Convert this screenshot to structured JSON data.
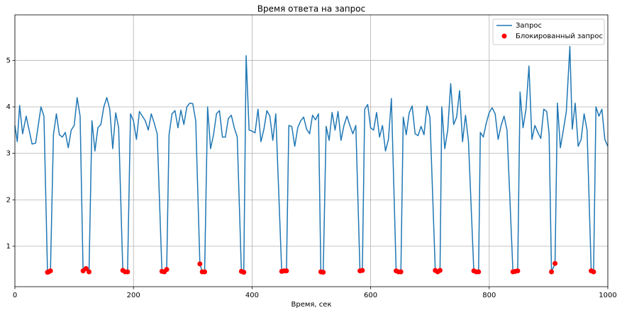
{
  "chart_data": {
    "type": "line",
    "title": "Время ответа на запрос",
    "x_label": "Время, сек",
    "xlim": [
      0,
      1000
    ],
    "xticks": [
      0,
      200,
      400,
      600,
      800,
      1000
    ],
    "ylim": [
      0.13,
      5.98
    ],
    "yticks": [
      1,
      2,
      3,
      4,
      5
    ],
    "grid": true,
    "legend": "upper right",
    "series": [
      {
        "name": "Запрос",
        "type": "line",
        "color": "#1f77b4",
        "x": [
          0,
          4,
          8,
          13,
          19,
          24,
          29,
          35,
          44,
          49,
          55,
          57,
          60,
          65,
          70,
          75,
          80,
          85,
          90,
          95,
          100,
          105,
          110,
          115,
          120,
          125,
          130,
          135,
          140,
          145,
          150,
          155,
          160,
          165,
          170,
          175,
          182,
          186,
          190,
          195,
          200,
          205,
          210,
          215,
          220,
          225,
          230,
          235,
          240,
          248,
          252,
          256,
          260,
          265,
          270,
          275,
          280,
          285,
          290,
          295,
          300,
          305,
          312,
          316,
          320,
          325,
          330,
          335,
          340,
          345,
          350,
          355,
          360,
          365,
          370,
          375,
          382,
          386,
          390,
          395,
          400,
          405,
          410,
          415,
          420,
          425,
          430,
          435,
          440,
          450,
          454,
          458,
          462,
          467,
          472,
          477,
          482,
          487,
          492,
          497,
          502,
          507,
          512,
          516,
          520,
          525,
          530,
          535,
          540,
          545,
          550,
          555,
          560,
          565,
          570,
          575,
          582,
          586,
          590,
          595,
          600,
          605,
          610,
          615,
          620,
          625,
          630,
          635,
          643,
          647,
          651,
          655,
          660,
          665,
          670,
          675,
          680,
          685,
          690,
          695,
          700,
          709,
          713,
          717,
          720,
          725,
          730,
          735,
          740,
          745,
          750,
          755,
          760,
          765,
          774,
          778,
          782,
          785,
          790,
          795,
          800,
          805,
          810,
          815,
          820,
          825,
          830,
          840,
          844,
          848,
          852,
          857,
          862,
          867,
          872,
          877,
          882,
          887,
          892,
          897,
          901,
          905,
          911,
          915,
          920,
          925,
          930,
          936,
          940,
          945,
          950,
          955,
          960,
          965,
          972,
          976,
          980,
          985,
          990,
          995,
          1000
        ],
        "values": [
          3.6,
          3.25,
          4.03,
          3.42,
          3.8,
          3.5,
          3.2,
          3.22,
          4.0,
          3.8,
          0.44,
          0.45,
          0.47,
          3.4,
          3.85,
          3.4,
          3.35,
          3.45,
          3.12,
          3.5,
          3.6,
          4.2,
          3.8,
          0.47,
          0.52,
          0.45,
          3.7,
          3.05,
          3.55,
          3.62,
          4.0,
          4.2,
          3.95,
          3.1,
          3.87,
          3.55,
          0.48,
          0.45,
          0.45,
          3.85,
          3.7,
          3.3,
          3.9,
          3.8,
          3.7,
          3.5,
          3.85,
          3.65,
          3.42,
          0.46,
          0.45,
          0.5,
          3.4,
          3.85,
          3.92,
          3.55,
          3.93,
          3.62,
          4.0,
          4.08,
          4.07,
          3.7,
          0.62,
          0.45,
          0.45,
          4.0,
          3.1,
          3.4,
          3.85,
          3.92,
          3.35,
          3.35,
          3.75,
          3.82,
          3.55,
          3.35,
          0.46,
          0.44,
          5.1,
          3.5,
          3.48,
          3.44,
          3.95,
          3.25,
          3.52,
          3.92,
          3.8,
          3.28,
          3.85,
          0.46,
          0.47,
          0.47,
          3.6,
          3.58,
          3.15,
          3.55,
          3.7,
          3.78,
          3.52,
          3.42,
          3.82,
          3.72,
          3.85,
          0.45,
          0.44,
          3.58,
          3.28,
          3.88,
          3.5,
          3.9,
          3.28,
          3.6,
          3.8,
          3.6,
          3.42,
          3.6,
          0.47,
          0.48,
          3.95,
          4.05,
          3.55,
          3.5,
          3.88,
          3.35,
          3.6,
          3.05,
          3.3,
          4.18,
          0.47,
          0.45,
          0.45,
          3.78,
          3.4,
          3.87,
          4.02,
          3.42,
          3.38,
          3.58,
          3.4,
          4.02,
          3.78,
          0.48,
          0.45,
          0.48,
          4.0,
          3.1,
          3.5,
          4.5,
          3.62,
          3.78,
          4.35,
          3.25,
          3.82,
          3.25,
          0.47,
          0.45,
          0.45,
          3.45,
          3.35,
          3.65,
          3.88,
          3.98,
          3.85,
          3.3,
          3.6,
          3.8,
          3.5,
          0.45,
          0.46,
          0.47,
          4.32,
          3.55,
          3.95,
          4.88,
          3.3,
          3.6,
          3.45,
          3.32,
          3.95,
          3.9,
          3.42,
          0.45,
          0.63,
          4.08,
          3.12,
          3.5,
          3.9,
          5.3,
          3.52,
          4.08,
          3.15,
          3.3,
          3.85,
          3.5,
          0.47,
          0.45,
          4.0,
          3.8,
          3.95,
          3.3,
          3.15
        ]
      },
      {
        "name": "Блокированный запрос",
        "type": "scatter",
        "color": "#ff0000",
        "x": [
          55,
          57,
          60,
          115,
          120,
          125,
          182,
          186,
          190,
          248,
          252,
          256,
          312,
          316,
          320,
          382,
          386,
          450,
          454,
          458,
          516,
          520,
          582,
          586,
          643,
          647,
          651,
          709,
          713,
          717,
          774,
          778,
          782,
          840,
          844,
          848,
          905,
          911,
          972,
          976
        ],
        "values": [
          0.44,
          0.45,
          0.47,
          0.47,
          0.52,
          0.45,
          0.48,
          0.45,
          0.45,
          0.46,
          0.45,
          0.5,
          0.62,
          0.45,
          0.45,
          0.46,
          0.44,
          0.46,
          0.47,
          0.47,
          0.45,
          0.44,
          0.47,
          0.48,
          0.47,
          0.45,
          0.45,
          0.48,
          0.45,
          0.48,
          0.47,
          0.45,
          0.45,
          0.45,
          0.46,
          0.47,
          0.45,
          0.63,
          0.47,
          0.45
        ]
      }
    ]
  }
}
